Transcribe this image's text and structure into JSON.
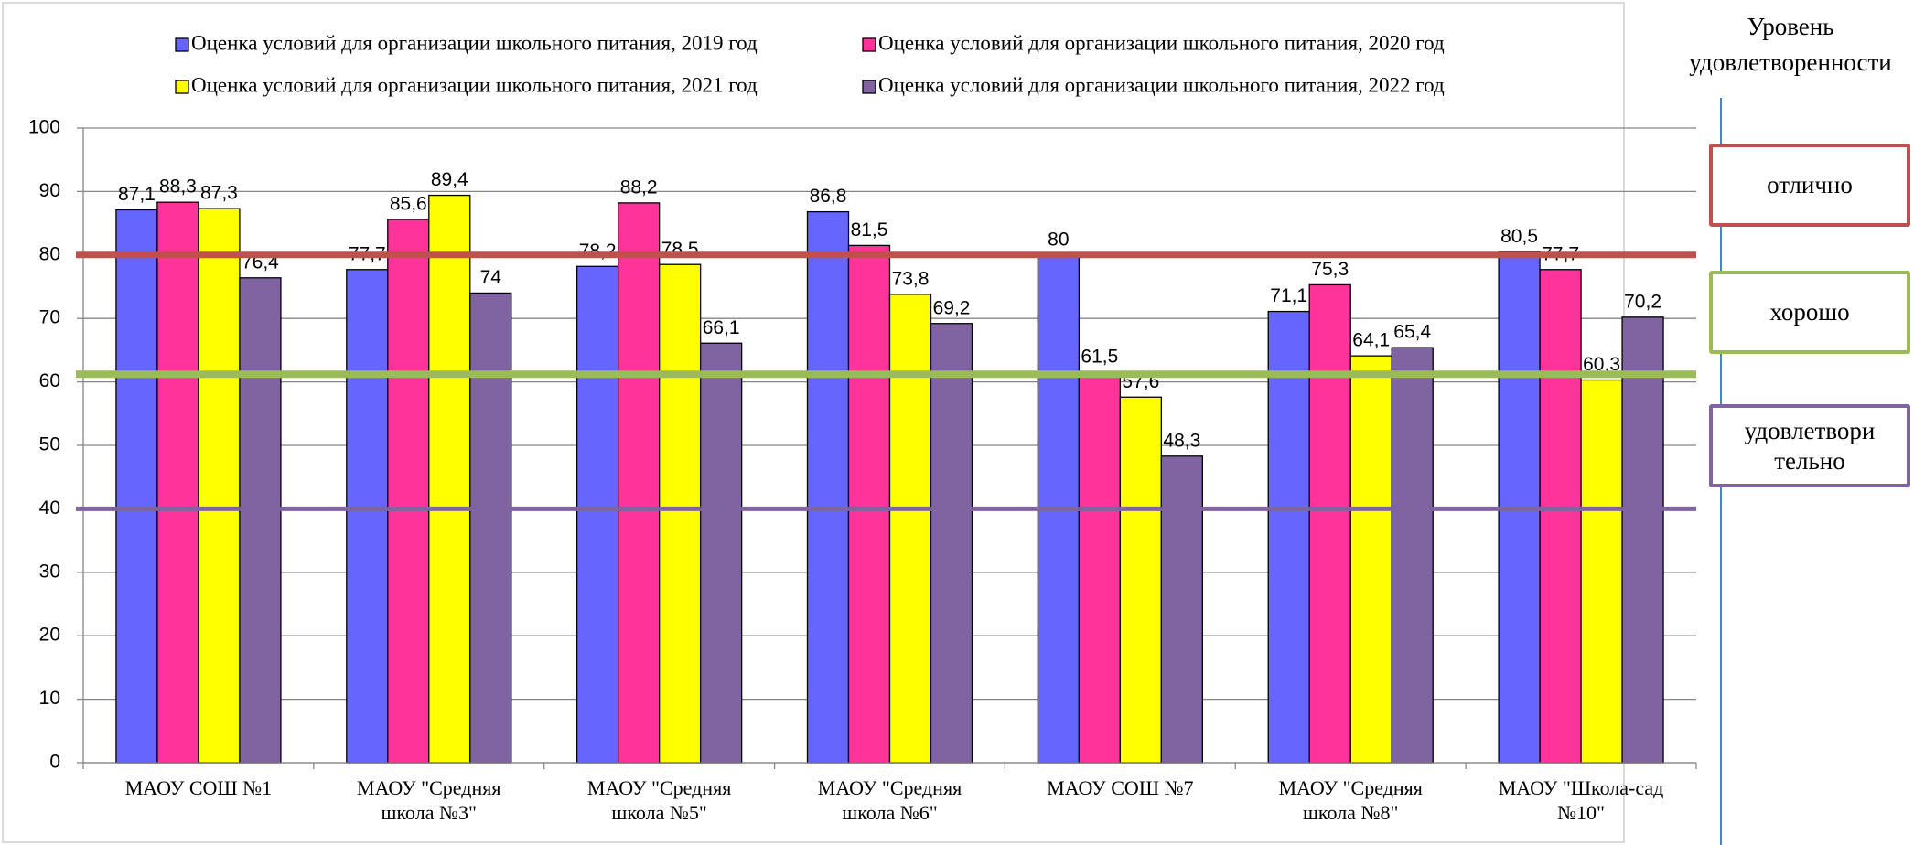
{
  "chart_data": {
    "type": "bar",
    "categories": [
      "МАОУ СОШ №1",
      "МАОУ \"Средняя школа №3\"",
      "МАОУ \"Средняя школа №5\"",
      "МАОУ \"Средняя школа №6\"",
      "МАОУ СОШ №7",
      "МАОУ \"Средняя школа №8\"",
      "МАОУ \"Школа-сад №10\""
    ],
    "series": [
      {
        "name": "Оценка условий для организации школьного питания, 2019 год",
        "color": "#6666ff",
        "values": [
          87.1,
          77.7,
          78.2,
          86.8,
          80,
          71.1,
          80.5
        ],
        "value_labels": [
          "87,1",
          "77,7",
          "78,2",
          "86,8",
          "80",
          "71,1",
          "80,5"
        ]
      },
      {
        "name": "Оценка условий для организации школьного питания, 2020 год",
        "color": "#ff3399",
        "values": [
          88.3,
          85.6,
          88.2,
          81.5,
          61.5,
          75.3,
          77.7
        ],
        "value_labels": [
          "88,3",
          "85,6",
          "88,2",
          "81,5",
          "61,5",
          "75,3",
          "77,7"
        ]
      },
      {
        "name": "Оценка условий для организации школьного питания, 2021 год",
        "color": "#ffff00",
        "values": [
          87.3,
          89.4,
          78.5,
          73.8,
          57.6,
          64.1,
          60.3
        ],
        "value_labels": [
          "87,3",
          "89,4",
          "78,5",
          "73,8",
          "57,6",
          "64,1",
          "60,3"
        ]
      },
      {
        "name": "Оценка условий для организации школьного питания, 2022 год",
        "color": "#8064a2",
        "values": [
          76.4,
          74,
          66.1,
          69.2,
          48.3,
          65.4,
          70.2
        ],
        "value_labels": [
          "76,4",
          "74",
          "66,1",
          "69,2",
          "48,3",
          "65,4",
          "70,2"
        ]
      }
    ],
    "ylim": [
      0,
      100
    ],
    "yticks": [
      0,
      10,
      20,
      30,
      40,
      50,
      60,
      70,
      80,
      90,
      100
    ],
    "grid": true,
    "legend_position": "top",
    "reference_title": "Уровень удовлетворенности",
    "reference_lines": [
      {
        "value": 80,
        "color": "#c0504d",
        "label": "отлично"
      },
      {
        "value": 61.2,
        "color": "#9bbb59",
        "label": "хорошо"
      },
      {
        "value": 40,
        "color": "#8064a2",
        "label": "удовлетвори тельно"
      }
    ]
  }
}
